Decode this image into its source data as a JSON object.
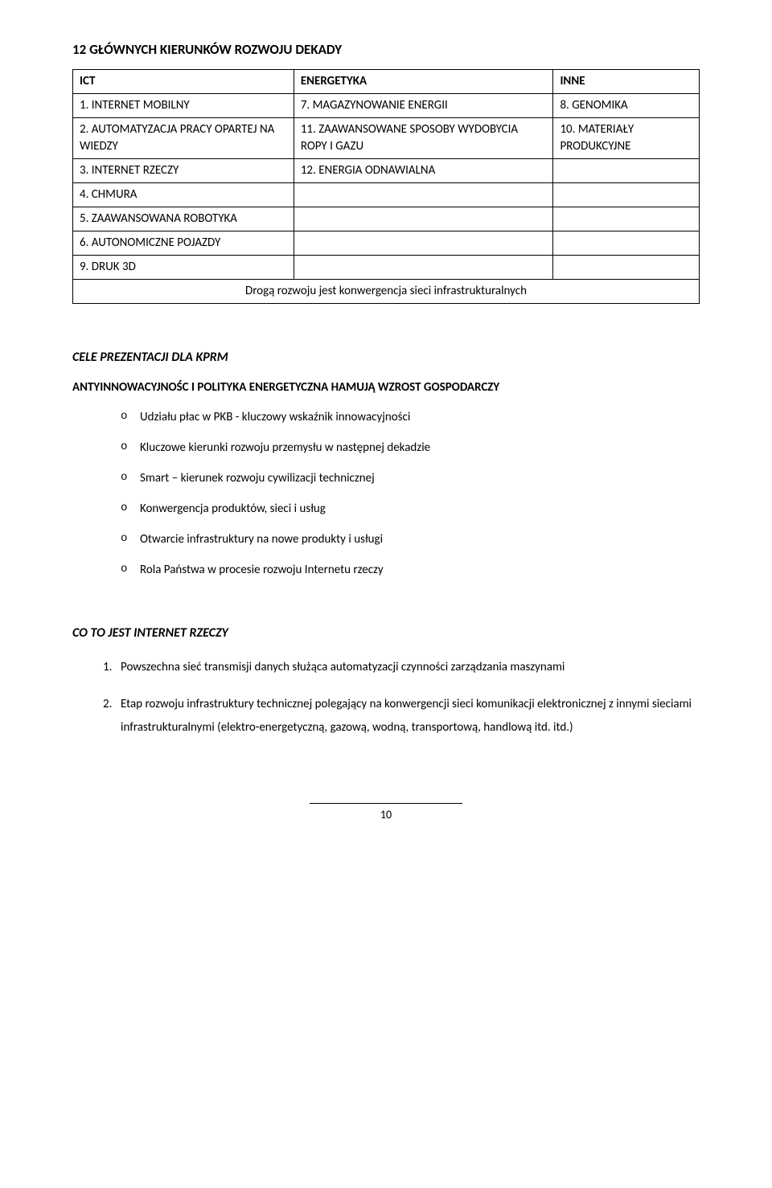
{
  "title": "12 GŁÓWNYCH KIERUNKÓW ROZWOJU  DEKADY",
  "table": {
    "headers": [
      "ICT",
      "ENERGETYKA",
      "INNE"
    ],
    "rows": [
      [
        "1. INTERNET MOBILNY",
        "7. MAGAZYNOWANIE ENERGII",
        "8. GENOMIKA"
      ],
      [
        "2. AUTOMATYZACJA PRACY OPARTEJ NA WIEDZY",
        "11. ZAAWANSOWANE SPOSOBY WYDOBYCIA ROPY I GAZU",
        "10. MATERIAŁY PRODUKCYJNE"
      ],
      [
        "3. INTERNET RZECZY",
        "12. ENERGIA ODNAWIALNA",
        ""
      ],
      [
        "4. CHMURA",
        "",
        ""
      ],
      [
        "5. ZAAWANSOWANA ROBOTYKA",
        "",
        ""
      ],
      [
        "6. AUTONOMICZNE POJAZDY",
        "",
        ""
      ],
      [
        "9. DRUK 3D",
        "",
        ""
      ]
    ],
    "footer": "Drogą rozwoju jest konwergencja sieci infrastrukturalnych"
  },
  "section1": {
    "heading": "CELE PREZENTACJI DLA KPRM",
    "subheading": "ANTYINNOWACYJNOŚC I POLITYKA ENERGETYCZNA HAMUJĄ WZROST GOSPODARCZY",
    "items": [
      "Udziału płac w PKB - kluczowy wskaźnik innowacyjności",
      "Kluczowe kierunki rozwoju przemysłu w następnej dekadzie",
      "Smart – kierunek rozwoju cywilizacji technicznej",
      "Konwergencja produktów, sieci  i usług",
      "Otwarcie infrastruktury na nowe produkty i usługi",
      "Rola Państwa w procesie rozwoju Internetu rzeczy"
    ]
  },
  "section2": {
    "heading": "CO TO JEST INTERNET RZECZY",
    "items": [
      "Powszechna sieć transmisji danych służąca automatyzacji czynności zarządzania maszynami",
      "Etap rozwoju infrastruktury technicznej polegający na konwergencji sieci komunikacji elektronicznej z innymi sieciami infrastrukturalnymi (elektro-energetyczną, gazową, wodną, transportową, handlową itd. itd.)"
    ]
  },
  "pageNumber": "10"
}
